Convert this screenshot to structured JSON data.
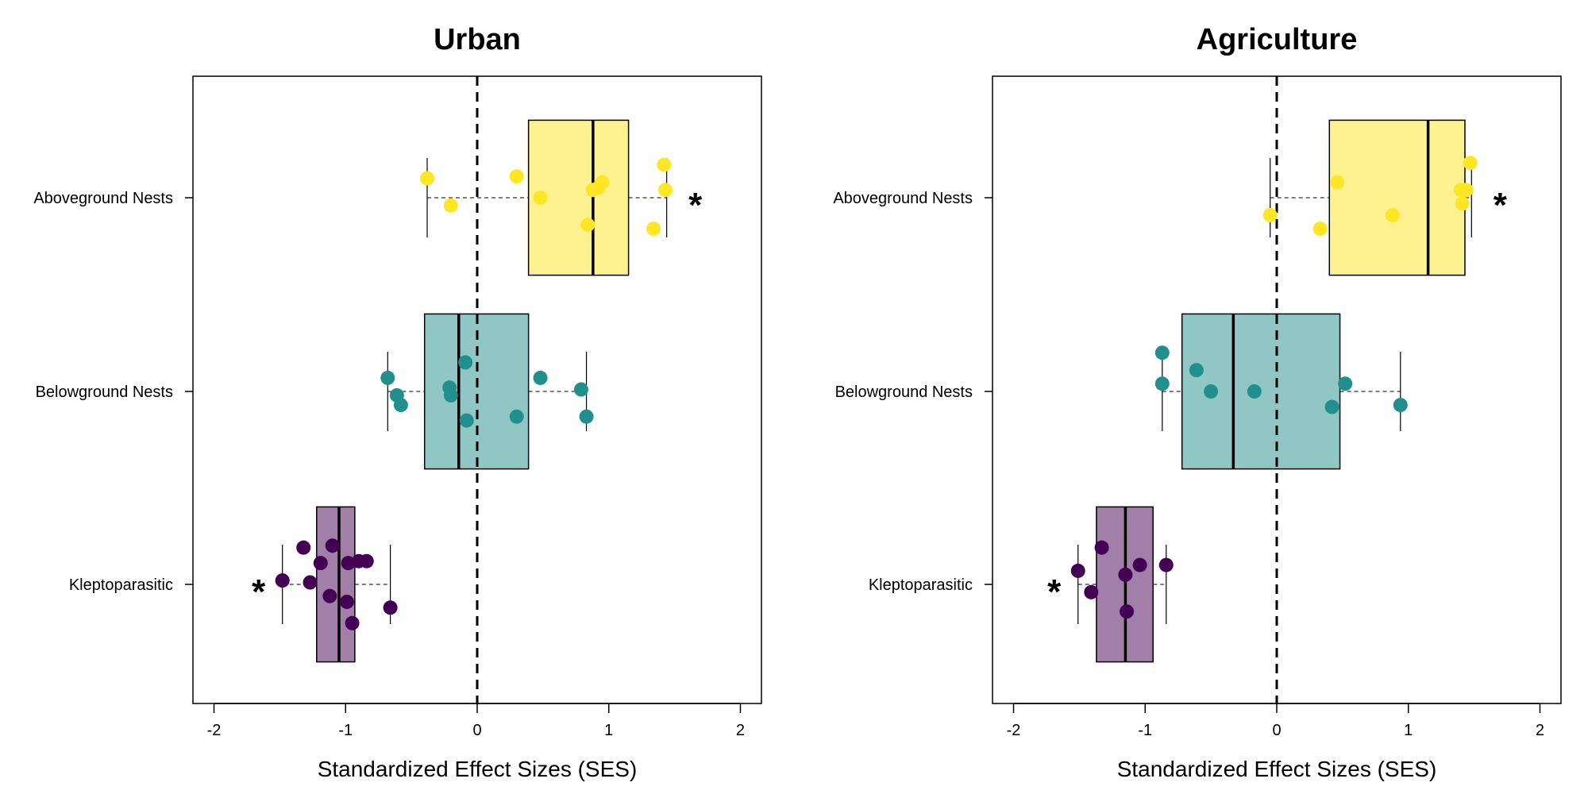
{
  "chart_data": [
    {
      "type": "box",
      "title": "Urban",
      "xlabel": "Standardized Effect Sizes (SES)",
      "xlim": [
        -2,
        2
      ],
      "xticks": [
        -2,
        -1,
        0,
        1,
        2
      ],
      "reference_line": 0,
      "categories": [
        "Aboveground Nests",
        "Belowground Nests",
        "Kleptoparasitic"
      ],
      "series": [
        {
          "category": "Aboveground Nests",
          "color": "#fde725",
          "fill": "#fef290",
          "box": {
            "whisker_low": -0.38,
            "q1": 0.39,
            "median": 0.88,
            "q3": 1.15,
            "whisker_high": 1.44
          },
          "points": [
            {
              "x": -0.38,
              "jitter": 0.1
            },
            {
              "x": -0.2,
              "jitter": -0.04
            },
            {
              "x": 0.3,
              "jitter": 0.11
            },
            {
              "x": 0.48,
              "jitter": 0.0
            },
            {
              "x": 0.84,
              "jitter": -0.14
            },
            {
              "x": 0.88,
              "jitter": 0.04
            },
            {
              "x": 0.92,
              "jitter": 0.05
            },
            {
              "x": 0.95,
              "jitter": 0.08
            },
            {
              "x": 1.34,
              "jitter": -0.16
            },
            {
              "x": 1.42,
              "jitter": 0.17
            },
            {
              "x": 1.43,
              "jitter": 0.04
            }
          ],
          "significant": true,
          "star_side": "right"
        },
        {
          "category": "Belowground Nests",
          "color": "#21908d",
          "fill": "#90c7c5",
          "box": {
            "whisker_low": -0.68,
            "q1": -0.4,
            "median": -0.14,
            "q3": 0.39,
            "whisker_high": 0.83
          },
          "points": [
            {
              "x": -0.68,
              "jitter": 0.07
            },
            {
              "x": -0.61,
              "jitter": -0.02
            },
            {
              "x": -0.58,
              "jitter": -0.07
            },
            {
              "x": -0.21,
              "jitter": 0.02
            },
            {
              "x": -0.2,
              "jitter": -0.02
            },
            {
              "x": -0.09,
              "jitter": 0.15
            },
            {
              "x": -0.08,
              "jitter": -0.15
            },
            {
              "x": 0.3,
              "jitter": -0.13
            },
            {
              "x": 0.48,
              "jitter": 0.07
            },
            {
              "x": 0.79,
              "jitter": 0.01
            },
            {
              "x": 0.83,
              "jitter": -0.13
            }
          ],
          "significant": false
        },
        {
          "category": "Kleptoparasitic",
          "color": "#440154",
          "fill": "#a27fa9",
          "box": {
            "whisker_low": -1.48,
            "q1": -1.22,
            "median": -1.05,
            "q3": -0.93,
            "whisker_high": -0.66
          },
          "points": [
            {
              "x": -1.48,
              "jitter": 0.02
            },
            {
              "x": -1.32,
              "jitter": 0.19
            },
            {
              "x": -1.27,
              "jitter": 0.01
            },
            {
              "x": -1.19,
              "jitter": 0.11
            },
            {
              "x": -1.12,
              "jitter": -0.06
            },
            {
              "x": -1.1,
              "jitter": 0.2
            },
            {
              "x": -0.99,
              "jitter": -0.09
            },
            {
              "x": -0.98,
              "jitter": 0.11
            },
            {
              "x": -0.95,
              "jitter": -0.2
            },
            {
              "x": -0.9,
              "jitter": 0.12
            },
            {
              "x": -0.84,
              "jitter": 0.12
            },
            {
              "x": -0.66,
              "jitter": -0.12
            }
          ],
          "significant": true,
          "star_side": "left"
        }
      ]
    },
    {
      "type": "box",
      "title": "Agriculture",
      "xlabel": "Standardized Effect Sizes (SES)",
      "xlim": [
        -2,
        2
      ],
      "xticks": [
        -2,
        -1,
        0,
        1,
        2
      ],
      "reference_line": 0,
      "categories": [
        "Aboveground Nests",
        "Belowground Nests",
        "Kleptoparasitic"
      ],
      "series": [
        {
          "category": "Aboveground Nests",
          "color": "#fde725",
          "fill": "#fef290",
          "box": {
            "whisker_low": -0.05,
            "q1": 0.4,
            "median": 1.15,
            "q3": 1.43,
            "whisker_high": 1.48
          },
          "points": [
            {
              "x": -0.05,
              "jitter": -0.09
            },
            {
              "x": 0.33,
              "jitter": -0.16
            },
            {
              "x": 0.46,
              "jitter": 0.08
            },
            {
              "x": 0.88,
              "jitter": -0.09
            },
            {
              "x": 1.4,
              "jitter": 0.04
            },
            {
              "x": 1.41,
              "jitter": -0.03
            },
            {
              "x": 1.44,
              "jitter": 0.04
            },
            {
              "x": 1.47,
              "jitter": 0.18
            }
          ],
          "significant": true,
          "star_side": "right"
        },
        {
          "category": "Belowground Nests",
          "color": "#21908d",
          "fill": "#90c7c5",
          "box": {
            "whisker_low": -0.87,
            "q1": -0.72,
            "median": -0.33,
            "q3": 0.48,
            "whisker_high": 0.94
          },
          "points": [
            {
              "x": -0.87,
              "jitter": 0.2
            },
            {
              "x": -0.87,
              "jitter": 0.04
            },
            {
              "x": -0.61,
              "jitter": 0.11
            },
            {
              "x": -0.5,
              "jitter": 0.0
            },
            {
              "x": -0.17,
              "jitter": 0.0
            },
            {
              "x": 0.42,
              "jitter": -0.08
            },
            {
              "x": 0.52,
              "jitter": 0.04
            },
            {
              "x": 0.94,
              "jitter": -0.07
            }
          ],
          "significant": false
        },
        {
          "category": "Kleptoparasitic",
          "color": "#440154",
          "fill": "#a27fa9",
          "box": {
            "whisker_low": -1.51,
            "q1": -1.37,
            "median": -1.15,
            "q3": -0.94,
            "whisker_high": -0.84
          },
          "points": [
            {
              "x": -1.51,
              "jitter": 0.07
            },
            {
              "x": -1.41,
              "jitter": -0.04
            },
            {
              "x": -1.33,
              "jitter": 0.19
            },
            {
              "x": -1.15,
              "jitter": 0.05
            },
            {
              "x": -1.14,
              "jitter": -0.14
            },
            {
              "x": -1.04,
              "jitter": 0.1
            },
            {
              "x": -0.84,
              "jitter": 0.1
            }
          ],
          "significant": true,
          "star_side": "left"
        }
      ]
    }
  ]
}
